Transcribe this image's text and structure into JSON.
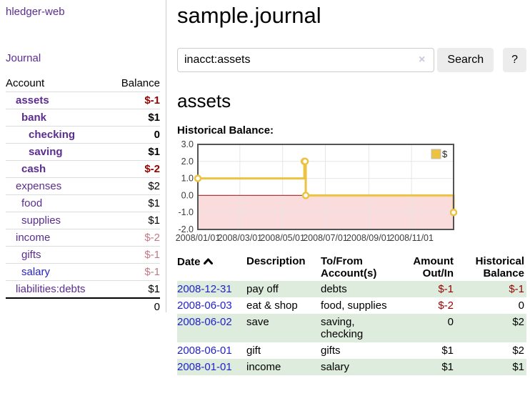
{
  "app": {
    "title": "hledger-web"
  },
  "nav": {
    "journal_label": "Journal"
  },
  "sidebar": {
    "header": {
      "account": "Account",
      "balance": "Balance"
    },
    "accounts": [
      {
        "name": "assets",
        "indent": 1,
        "bold": true,
        "link_color": "purple",
        "balance": "$-1",
        "balance_style": "neg-strong"
      },
      {
        "name": "bank",
        "indent": 2,
        "bold": true,
        "link_color": "purple",
        "balance": "$1",
        "balance_style": "pos-strong"
      },
      {
        "name": "checking",
        "indent": 3,
        "bold": true,
        "link_color": "purple",
        "balance": "0",
        "balance_style": "pos-strong"
      },
      {
        "name": "saving",
        "indent": 3,
        "bold": true,
        "link_color": "purple",
        "balance": "$1",
        "balance_style": "pos-strong"
      },
      {
        "name": "cash",
        "indent": 2,
        "bold": true,
        "link_color": "purple",
        "balance": "$-2",
        "balance_style": "neg-strong"
      },
      {
        "name": "expenses",
        "indent": 1,
        "bold": false,
        "link_color": "purple",
        "balance": "$2",
        "balance_style": "plain"
      },
      {
        "name": "food",
        "indent": 2,
        "bold": false,
        "link_color": "purple",
        "balance": "$1",
        "balance_style": "plain"
      },
      {
        "name": "supplies",
        "indent": 2,
        "bold": false,
        "link_color": "purple",
        "balance": "$1",
        "balance_style": "plain"
      },
      {
        "name": "income",
        "indent": 1,
        "bold": false,
        "link_color": "purple",
        "balance": "$-2",
        "balance_style": "neg-faded"
      },
      {
        "name": "gifts",
        "indent": 2,
        "bold": false,
        "link_color": "purple",
        "balance": "$-1",
        "balance_style": "neg-faded"
      },
      {
        "name": "salary",
        "indent": 2,
        "bold": false,
        "link_color": "blue",
        "balance": "$-1",
        "balance_style": "neg-faded"
      },
      {
        "name": "liabilities:debts",
        "indent": 1,
        "bold": false,
        "link_color": "purple",
        "balance": "$1",
        "balance_style": "plain"
      }
    ],
    "total": "0"
  },
  "header": {
    "title": "sample.journal"
  },
  "search": {
    "value": "inacct:assets",
    "clear_icon": "×",
    "button_label": "Search",
    "help_label": "?"
  },
  "page": {
    "account_heading": "assets",
    "chart_label": "Historical Balance:"
  },
  "chart_data": {
    "type": "line",
    "step": true,
    "title": "Historical Balance",
    "series": [
      {
        "name": "$",
        "color": "#edc240",
        "points": [
          [
            "2008-01-01",
            1
          ],
          [
            "2008-06-01",
            2
          ],
          [
            "2008-06-02",
            2
          ],
          [
            "2008-06-03",
            0
          ],
          [
            "2008-12-31",
            -1
          ]
        ]
      }
    ],
    "xlim": [
      "2008-01-01",
      "2008-12-31"
    ],
    "ylim": [
      -2,
      3
    ],
    "x_ticks": [
      {
        "date": "2008-01-01",
        "label": "2008/01/01"
      },
      {
        "date": "2008-03-01",
        "label": "2008/03/01"
      },
      {
        "date": "2008-05-01",
        "label": "2008/05/01"
      },
      {
        "date": "2008-07-01",
        "label": "2008/07/01"
      },
      {
        "date": "2008-09-01",
        "label": "2008/09/01"
      },
      {
        "date": "2008-11-01",
        "label": "2008/11/01"
      }
    ],
    "y_ticks": [
      {
        "v": 3,
        "label": "3.0"
      },
      {
        "v": 2,
        "label": "2.0"
      },
      {
        "v": 1,
        "label": "1.0"
      },
      {
        "v": 0,
        "label": "0.0"
      },
      {
        "v": -1,
        "label": "-1.0"
      },
      {
        "v": -2,
        "label": "-2.0"
      }
    ],
    "grid": true,
    "legend_position": "top-right",
    "negative_fill": "#fadcdc",
    "zero_line_color": "#a33c3c",
    "border_color": "#545454",
    "gridline_color": "#e6e6e6"
  },
  "register": {
    "columns": {
      "date": "Date",
      "description": "Description",
      "accounts": "To/From Account(s)",
      "amount": "Amount Out/In",
      "balance": "Historical Balance"
    },
    "sort": "ascending",
    "rows": [
      {
        "date": "2008-12-31",
        "description": "pay off",
        "accounts": "debts",
        "amount": "$-1",
        "amount_negative": true,
        "balance": "$-1",
        "balance_negative": true,
        "shaded": true
      },
      {
        "date": "2008-06-03",
        "description": "eat & shop",
        "accounts": "food, supplies",
        "amount": "$-2",
        "amount_negative": true,
        "balance": "0",
        "balance_negative": false,
        "shaded": false
      },
      {
        "date": "2008-06-02",
        "description": "save",
        "accounts": "saving, checking",
        "amount": "0",
        "amount_negative": false,
        "balance": "$2",
        "balance_negative": false,
        "shaded": true
      },
      {
        "date": "2008-06-01",
        "description": "gift",
        "accounts": "gifts",
        "amount": "$1",
        "amount_negative": false,
        "balance": "$2",
        "balance_negative": false,
        "shaded": false
      },
      {
        "date": "2008-01-01",
        "description": "income",
        "accounts": "salary",
        "amount": "$1",
        "amount_negative": false,
        "balance": "$1",
        "balance_negative": false,
        "shaded": true
      }
    ]
  }
}
